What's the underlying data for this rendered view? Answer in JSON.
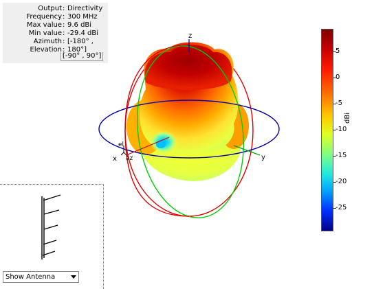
{
  "info": {
    "rows": [
      {
        "key": "Output",
        "value": "Directivity"
      },
      {
        "key": "Frequency",
        "value": "300 MHz"
      },
      {
        "key": "Max value",
        "value": "9.6 dBi"
      },
      {
        "key": "Min value",
        "value": "-29.4 dBi"
      },
      {
        "key": "Azimuth",
        "value": "[-180° ,"
      },
      {
        "key": "Elevation",
        "value": "180°]"
      }
    ],
    "extra_line": "[-90° , 90°]"
  },
  "axes": {
    "z_label": "z",
    "y_label": "y",
    "x_label": "x",
    "el_label": "el",
    "az_label": "az"
  },
  "colorbar": {
    "unit": "dBi",
    "ticks": [
      "5",
      "0",
      "-5",
      "-10",
      "-15",
      "-20",
      "-25"
    ],
    "colors": {
      "max": "#800000",
      "min": "#00008a"
    }
  },
  "colors": {
    "elevation_circle_red": "#cc0000",
    "elevation_circle_green": "#00cc00",
    "azimuth_circle_blue": "#0000aa"
  },
  "dropdown": {
    "selected": "Show Antenna"
  }
}
